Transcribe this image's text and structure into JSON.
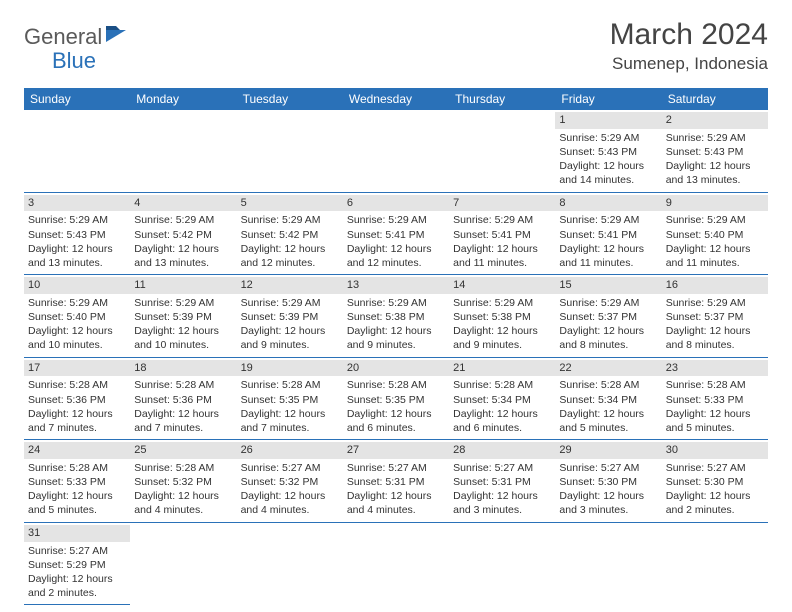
{
  "logo": {
    "text1": "General",
    "text2": "Blue"
  },
  "title": "March 2024",
  "location": "Sumenep, Indonesia",
  "colors": {
    "header_bg": "#2a71b8",
    "day_num_bg": "#e4e4e4",
    "border": "#2a71b8",
    "text": "#333333"
  },
  "day_headers": [
    "Sunday",
    "Monday",
    "Tuesday",
    "Wednesday",
    "Thursday",
    "Friday",
    "Saturday"
  ],
  "weeks": [
    [
      null,
      null,
      null,
      null,
      null,
      {
        "n": "1",
        "sr": "Sunrise: 5:29 AM",
        "ss": "Sunset: 5:43 PM",
        "dl": "Daylight: 12 hours and 14 minutes."
      },
      {
        "n": "2",
        "sr": "Sunrise: 5:29 AM",
        "ss": "Sunset: 5:43 PM",
        "dl": "Daylight: 12 hours and 13 minutes."
      }
    ],
    [
      {
        "n": "3",
        "sr": "Sunrise: 5:29 AM",
        "ss": "Sunset: 5:43 PM",
        "dl": "Daylight: 12 hours and 13 minutes."
      },
      {
        "n": "4",
        "sr": "Sunrise: 5:29 AM",
        "ss": "Sunset: 5:42 PM",
        "dl": "Daylight: 12 hours and 13 minutes."
      },
      {
        "n": "5",
        "sr": "Sunrise: 5:29 AM",
        "ss": "Sunset: 5:42 PM",
        "dl": "Daylight: 12 hours and 12 minutes."
      },
      {
        "n": "6",
        "sr": "Sunrise: 5:29 AM",
        "ss": "Sunset: 5:41 PM",
        "dl": "Daylight: 12 hours and 12 minutes."
      },
      {
        "n": "7",
        "sr": "Sunrise: 5:29 AM",
        "ss": "Sunset: 5:41 PM",
        "dl": "Daylight: 12 hours and 11 minutes."
      },
      {
        "n": "8",
        "sr": "Sunrise: 5:29 AM",
        "ss": "Sunset: 5:41 PM",
        "dl": "Daylight: 12 hours and 11 minutes."
      },
      {
        "n": "9",
        "sr": "Sunrise: 5:29 AM",
        "ss": "Sunset: 5:40 PM",
        "dl": "Daylight: 12 hours and 11 minutes."
      }
    ],
    [
      {
        "n": "10",
        "sr": "Sunrise: 5:29 AM",
        "ss": "Sunset: 5:40 PM",
        "dl": "Daylight: 12 hours and 10 minutes."
      },
      {
        "n": "11",
        "sr": "Sunrise: 5:29 AM",
        "ss": "Sunset: 5:39 PM",
        "dl": "Daylight: 12 hours and 10 minutes."
      },
      {
        "n": "12",
        "sr": "Sunrise: 5:29 AM",
        "ss": "Sunset: 5:39 PM",
        "dl": "Daylight: 12 hours and 9 minutes."
      },
      {
        "n": "13",
        "sr": "Sunrise: 5:29 AM",
        "ss": "Sunset: 5:38 PM",
        "dl": "Daylight: 12 hours and 9 minutes."
      },
      {
        "n": "14",
        "sr": "Sunrise: 5:29 AM",
        "ss": "Sunset: 5:38 PM",
        "dl": "Daylight: 12 hours and 9 minutes."
      },
      {
        "n": "15",
        "sr": "Sunrise: 5:29 AM",
        "ss": "Sunset: 5:37 PM",
        "dl": "Daylight: 12 hours and 8 minutes."
      },
      {
        "n": "16",
        "sr": "Sunrise: 5:29 AM",
        "ss": "Sunset: 5:37 PM",
        "dl": "Daylight: 12 hours and 8 minutes."
      }
    ],
    [
      {
        "n": "17",
        "sr": "Sunrise: 5:28 AM",
        "ss": "Sunset: 5:36 PM",
        "dl": "Daylight: 12 hours and 7 minutes."
      },
      {
        "n": "18",
        "sr": "Sunrise: 5:28 AM",
        "ss": "Sunset: 5:36 PM",
        "dl": "Daylight: 12 hours and 7 minutes."
      },
      {
        "n": "19",
        "sr": "Sunrise: 5:28 AM",
        "ss": "Sunset: 5:35 PM",
        "dl": "Daylight: 12 hours and 7 minutes."
      },
      {
        "n": "20",
        "sr": "Sunrise: 5:28 AM",
        "ss": "Sunset: 5:35 PM",
        "dl": "Daylight: 12 hours and 6 minutes."
      },
      {
        "n": "21",
        "sr": "Sunrise: 5:28 AM",
        "ss": "Sunset: 5:34 PM",
        "dl": "Daylight: 12 hours and 6 minutes."
      },
      {
        "n": "22",
        "sr": "Sunrise: 5:28 AM",
        "ss": "Sunset: 5:34 PM",
        "dl": "Daylight: 12 hours and 5 minutes."
      },
      {
        "n": "23",
        "sr": "Sunrise: 5:28 AM",
        "ss": "Sunset: 5:33 PM",
        "dl": "Daylight: 12 hours and 5 minutes."
      }
    ],
    [
      {
        "n": "24",
        "sr": "Sunrise: 5:28 AM",
        "ss": "Sunset: 5:33 PM",
        "dl": "Daylight: 12 hours and 5 minutes."
      },
      {
        "n": "25",
        "sr": "Sunrise: 5:28 AM",
        "ss": "Sunset: 5:32 PM",
        "dl": "Daylight: 12 hours and 4 minutes."
      },
      {
        "n": "26",
        "sr": "Sunrise: 5:27 AM",
        "ss": "Sunset: 5:32 PM",
        "dl": "Daylight: 12 hours and 4 minutes."
      },
      {
        "n": "27",
        "sr": "Sunrise: 5:27 AM",
        "ss": "Sunset: 5:31 PM",
        "dl": "Daylight: 12 hours and 4 minutes."
      },
      {
        "n": "28",
        "sr": "Sunrise: 5:27 AM",
        "ss": "Sunset: 5:31 PM",
        "dl": "Daylight: 12 hours and 3 minutes."
      },
      {
        "n": "29",
        "sr": "Sunrise: 5:27 AM",
        "ss": "Sunset: 5:30 PM",
        "dl": "Daylight: 12 hours and 3 minutes."
      },
      {
        "n": "30",
        "sr": "Sunrise: 5:27 AM",
        "ss": "Sunset: 5:30 PM",
        "dl": "Daylight: 12 hours and 2 minutes."
      }
    ],
    [
      {
        "n": "31",
        "sr": "Sunrise: 5:27 AM",
        "ss": "Sunset: 5:29 PM",
        "dl": "Daylight: 12 hours and 2 minutes."
      },
      null,
      null,
      null,
      null,
      null,
      null
    ]
  ]
}
